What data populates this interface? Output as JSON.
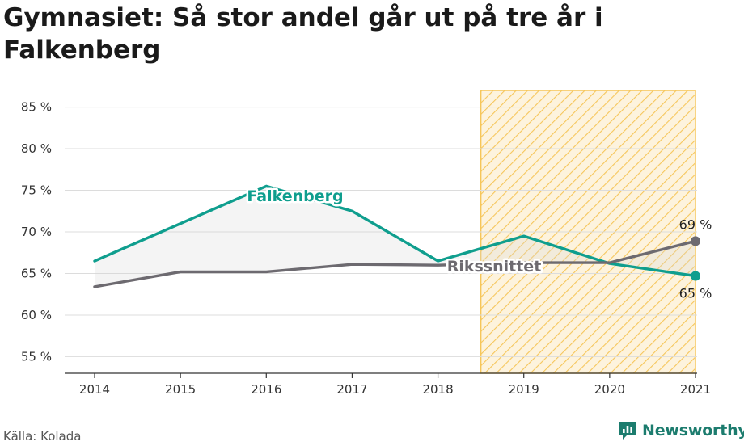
{
  "title": "Gymnasiet: Så stor andel går ut på tre år i Falkenberg",
  "source": "Källa: Kolada",
  "brand": {
    "name": "Newsworthy",
    "icon": "newsworthy-logo-icon",
    "color": "#1c7c6e"
  },
  "chart_data": {
    "type": "line",
    "x": [
      "2014",
      "2015",
      "2016",
      "2017",
      "2018",
      "2019",
      "2020",
      "2021"
    ],
    "ylim": [
      53,
      87
    ],
    "yticks": [
      55,
      60,
      65,
      70,
      75,
      80,
      85
    ],
    "ytick_labels": [
      "55 %",
      "60 %",
      "65 %",
      "70 %",
      "75 %",
      "80 %",
      "85 %"
    ],
    "grid": true,
    "highlight_range": [
      "2018.5",
      "2021"
    ],
    "highlight_color": "#f6c65a",
    "series": [
      {
        "name": "Falkenberg",
        "color": "#0f9e8e",
        "values": [
          66.5,
          71.0,
          75.5,
          72.5,
          66.5,
          69.5,
          66.2,
          64.7
        ]
      },
      {
        "name": "Rikssnittet",
        "color": "#6d6a70",
        "values": [
          63.4,
          65.2,
          65.2,
          66.1,
          66.0,
          66.3,
          66.3,
          68.9
        ]
      }
    ],
    "end_labels": [
      "65 %",
      "69 %"
    ]
  }
}
